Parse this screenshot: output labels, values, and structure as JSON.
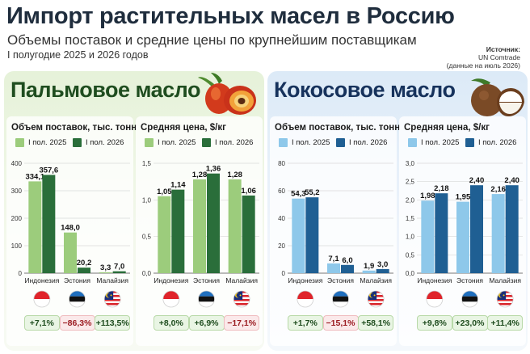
{
  "header": {
    "title": "Импорт растительных масел в Россию",
    "subtitle": "Объемы поставок и средние цены по крупнейшим поставщикам",
    "period": "I полугодие 2025 и 2026 годов",
    "source": [
      "Источник:",
      "UN Comtrade",
      "(данные на июль 2026)"
    ]
  },
  "legend": {
    "s2025": "I пол. 2025",
    "s2026": "I пол. 2026"
  },
  "colors": {
    "palm_light": "#9ccc7c",
    "palm_dark": "#2a6e3a",
    "coco_light": "#8ec8ea",
    "coco_dark": "#1f5f93",
    "positive": "#1f4d1f",
    "negative": "#9b1c22"
  },
  "panels": {
    "palm": {
      "title": "Пальмовое масло",
      "icon": "palm-fruit-icon"
    },
    "coconut": {
      "title": "Кокосовое масло",
      "icon": "coconut-icon"
    }
  },
  "chart_data": [
    {
      "id": "palm_volume",
      "type": "bar",
      "title": "Объем поставок, тыс. тонн",
      "categories": [
        "Индонезия",
        "Эстония",
        "Малайзия"
      ],
      "ylim": [
        0,
        400
      ],
      "yticks": [
        "0",
        "100",
        "200",
        "300",
        "400"
      ],
      "series": [
        {
          "name": "I пол. 2025",
          "values": [
            334.1,
            148.0,
            3.3
          ],
          "labels": [
            "334,1",
            "148,0",
            "3,3"
          ]
        },
        {
          "name": "I пол. 2026",
          "values": [
            357.6,
            20.2,
            7.0
          ],
          "labels": [
            "357,6",
            "20,2",
            "7,0"
          ]
        }
      ],
      "changes": [
        "+7,1%",
        "−86,3%",
        "+113,5%"
      ],
      "change_signs": [
        "pos",
        "neg",
        "pos"
      ]
    },
    {
      "id": "palm_price",
      "type": "bar",
      "title": "Средняя цена, $/кг",
      "categories": [
        "Индонезия",
        "Эстония",
        "Малайзия"
      ],
      "ylim": [
        0,
        1.5
      ],
      "yticks": [
        "0,0",
        "0,5",
        "1,0",
        "1,5"
      ],
      "series": [
        {
          "name": "I пол. 2025",
          "values": [
            1.05,
            1.28,
            1.28
          ],
          "labels": [
            "1,05",
            "1,28",
            "1,28"
          ]
        },
        {
          "name": "I пол. 2026",
          "values": [
            1.14,
            1.36,
            1.06
          ],
          "labels": [
            "1,14",
            "1,36",
            "1,06"
          ]
        }
      ],
      "changes": [
        "+8,0%",
        "+6,9%",
        "−17,1%"
      ],
      "change_signs": [
        "pos",
        "pos",
        "neg"
      ]
    },
    {
      "id": "coco_volume",
      "type": "bar",
      "title": "Объем поставок, тыс. тонн",
      "categories": [
        "Индонезия",
        "Эстония",
        "Малайзия"
      ],
      "ylim": [
        0,
        80
      ],
      "yticks": [
        "0",
        "20",
        "40",
        "60",
        "80"
      ],
      "series": [
        {
          "name": "I пол. 2025",
          "values": [
            54.3,
            7.1,
            1.9
          ],
          "labels": [
            "54,3",
            "7,1",
            "1,9"
          ]
        },
        {
          "name": "I пол. 2026",
          "values": [
            55.2,
            6.0,
            3.0
          ],
          "labels": [
            "55,2",
            "6,0",
            "3,0"
          ]
        }
      ],
      "changes": [
        "+1,7%",
        "−15,1%",
        "+58,1%"
      ],
      "change_signs": [
        "pos",
        "neg",
        "pos"
      ]
    },
    {
      "id": "coco_price",
      "type": "bar",
      "title": "Средняя цена, $/кг",
      "categories": [
        "Индонезия",
        "Эстония",
        "Малайзия"
      ],
      "ylim": [
        0,
        3.0
      ],
      "yticks": [
        "0,0",
        "0,5",
        "1,0",
        "1,5",
        "2,0",
        "2,5",
        "3,0"
      ],
      "series": [
        {
          "name": "I пол. 2025",
          "values": [
            1.98,
            1.95,
            2.16
          ],
          "labels": [
            "1,98",
            "1,95",
            "2,16"
          ]
        },
        {
          "name": "I пол. 2026",
          "values": [
            2.18,
            2.4,
            2.4
          ],
          "labels": [
            "2,18",
            "2,40",
            "2,40"
          ]
        }
      ],
      "changes": [
        "+9,8%",
        "+23,0%",
        "+11,4%"
      ],
      "change_signs": [
        "pos",
        "pos",
        "pos"
      ]
    }
  ]
}
